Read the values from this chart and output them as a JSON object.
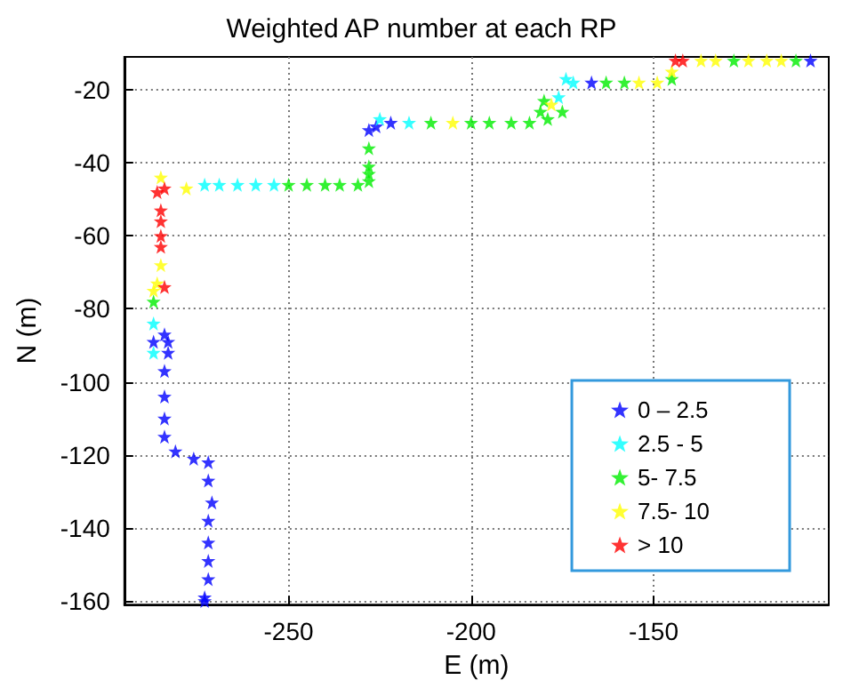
{
  "chart_data": {
    "type": "scatter",
    "title": "Weighted AP number at each RP",
    "xlabel": "E (m)",
    "ylabel": "N (m)",
    "xlim": [
      -295,
      -102
    ],
    "xticks": [
      -250,
      -200,
      -150
    ],
    "ylim": [
      -161,
      -11
    ],
    "yticks": [
      -160,
      -140,
      -120,
      -100,
      -80,
      -60,
      -40,
      -20
    ],
    "grid": true,
    "legend": "bottom right",
    "marker": "star",
    "series": [
      {
        "name": "0 – 2.5",
        "color": "#0000ff",
        "x": [
          -107,
          -167,
          -222,
          -226,
          -228,
          -287,
          -284,
          -283,
          -283,
          -284,
          -284,
          -284,
          -284,
          -281,
          -276,
          -272,
          -272,
          -271,
          -272,
          -272,
          -272,
          -272,
          -273,
          -273
        ],
        "values": [
          -12,
          -18,
          -29,
          -30,
          -31,
          -89,
          -87,
          -89,
          -92,
          -97,
          -104,
          -110,
          -115,
          -119,
          -121,
          -122,
          -127,
          -133,
          -138,
          -144,
          -149,
          -154,
          -159,
          -160
        ]
      },
      {
        "name": "2.5 - 5",
        "color": "#00ffff",
        "x": [
          -174,
          -172,
          -176,
          -217,
          -225,
          -254,
          -259,
          -264,
          -269,
          -273,
          -287,
          -287
        ],
        "values": [
          -17,
          -18,
          -22,
          -29,
          -28,
          -46,
          -46,
          -46,
          -46,
          -46,
          -84,
          -92
        ]
      },
      {
        "name": "5- 7.5",
        "color": "#00ee00",
        "x": [
          -128,
          -111,
          -145,
          -163,
          -158,
          -180,
          -175,
          -179,
          -181,
          -184,
          -189,
          -195,
          -200,
          -211,
          -228,
          -228,
          -228,
          -228,
          -231,
          -236,
          -240,
          -245,
          -250,
          -287
        ],
        "values": [
          -12,
          -12,
          -17,
          -18,
          -18,
          -23,
          -26,
          -28,
          -26,
          -29,
          -29,
          -29,
          -29,
          -29,
          -36,
          -41,
          -43,
          -45,
          -46,
          -46,
          -46,
          -46,
          -46,
          -78
        ]
      },
      {
        "name": "7.5- 10",
        "color": "#ffff00",
        "x": [
          -137,
          -133,
          -124,
          -119,
          -115,
          -145,
          -154,
          -149,
          -178,
          -205,
          -278,
          -285,
          -285,
          -286,
          -287
        ],
        "values": [
          -12,
          -12,
          -12,
          -12,
          -12,
          -15,
          -18,
          -18,
          -24,
          -29,
          -47,
          -44,
          -68,
          -73,
          -75
        ]
      },
      {
        "name": "> 10",
        "color": "#ff0000",
        "x": [
          -144,
          -142,
          -284,
          -286,
          -285,
          -285,
          -285,
          -285,
          -284
        ],
        "values": [
          -12,
          -12,
          -47,
          -48,
          -53,
          -56,
          -60,
          -63,
          -74
        ]
      }
    ]
  }
}
